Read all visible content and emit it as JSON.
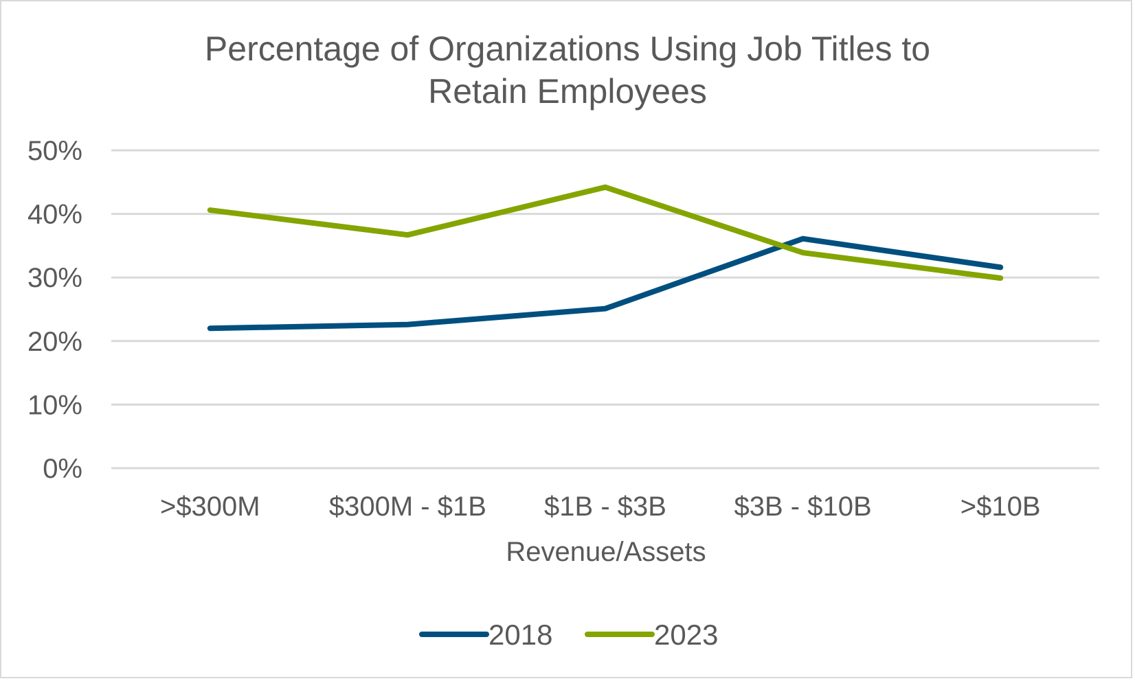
{
  "chart_data": {
    "type": "line",
    "title_lines": [
      "Percentage of Organizations Using Job Titles to",
      "Retain Employees"
    ],
    "title": "Percentage of Organizations Using Job Titles to Retain Employees",
    "xlabel": "Revenue/Assets",
    "ylabel": "",
    "categories": [
      ">$300M",
      "$300M - $1B",
      "$1B - $3B",
      "$3B - $10B",
      ">$10B"
    ],
    "ylim": [
      0,
      50
    ],
    "yticks": [
      0,
      10,
      20,
      30,
      40,
      50
    ],
    "ytick_labels": [
      "0%",
      "10%",
      "20%",
      "30%",
      "40%",
      "50%"
    ],
    "grid": true,
    "legend_position": "bottom",
    "series": [
      {
        "name": "2018",
        "color": "#004f7f",
        "values": [
          22.0,
          22.6,
          25.1,
          36.1,
          31.6
        ]
      },
      {
        "name": "2023",
        "color": "#84a500",
        "values": [
          40.6,
          36.7,
          44.2,
          33.9,
          29.9
        ]
      }
    ]
  }
}
